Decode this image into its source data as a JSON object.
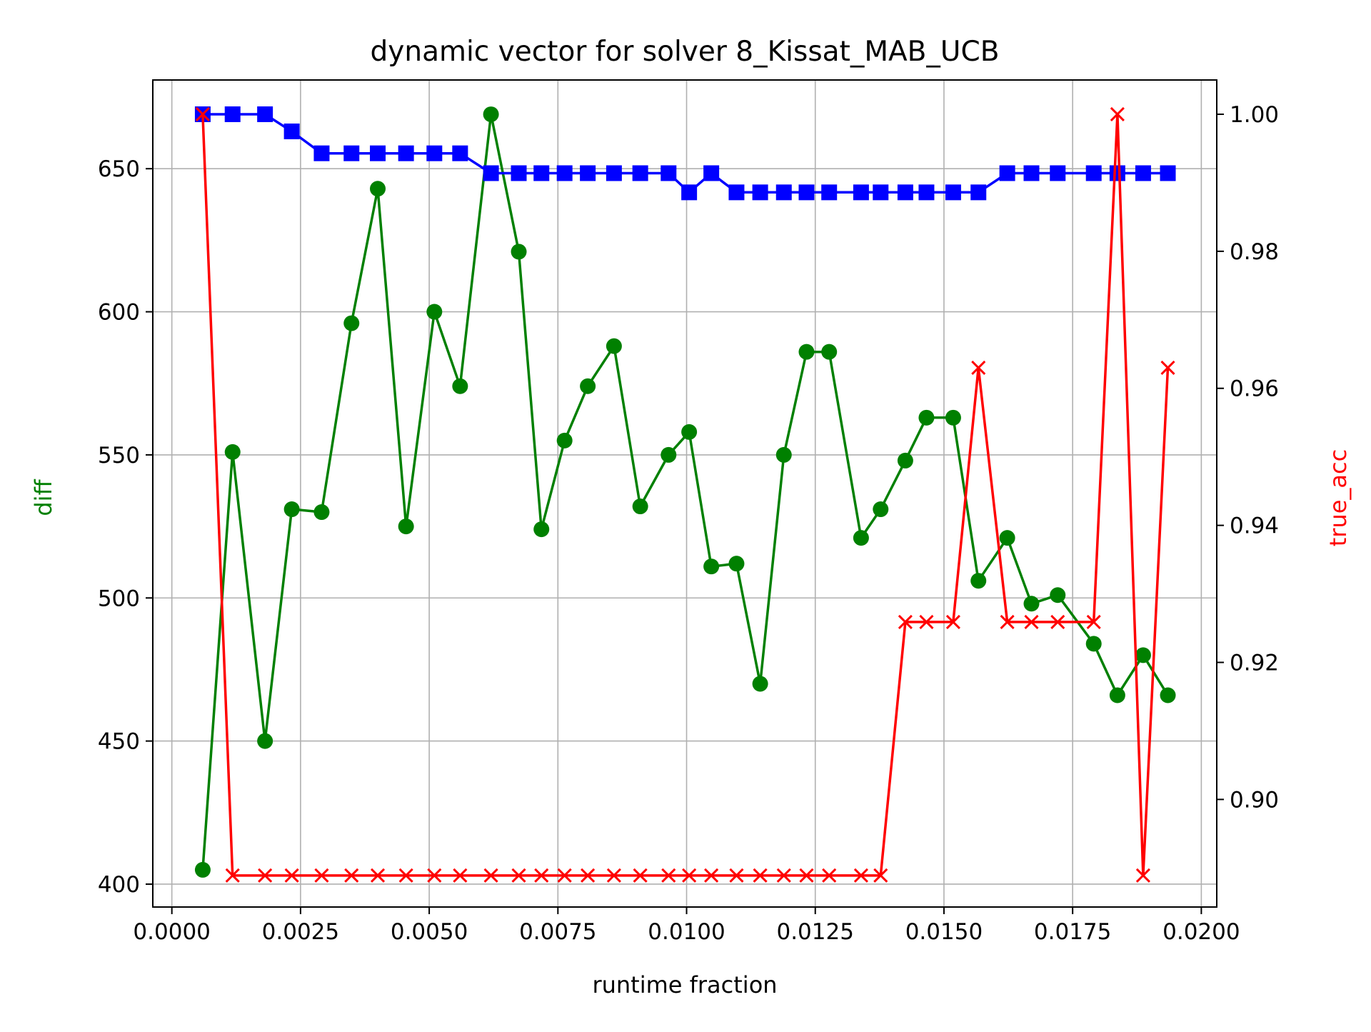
{
  "chart_data": {
    "type": "line",
    "title": "dynamic vector for solver 8_Kissat_MAB_UCB",
    "xlabel": "runtime fraction",
    "ylabel_left": "diff",
    "ylabel_right": "true_acc",
    "xlim": [
      -0.00037,
      0.0203
    ],
    "ylim_left": [
      392,
      681
    ],
    "ylim_right": [
      0.8843,
      1.005
    ],
    "xticks": [
      0.0,
      0.0025,
      0.005,
      0.0075,
      0.01,
      0.0125,
      0.015,
      0.0175,
      0.02
    ],
    "xtick_labels": [
      "0.0000",
      "0.0025",
      "0.0050",
      "0.0075",
      "0.0100",
      "0.0125",
      "0.0150",
      "0.0175",
      "0.0200"
    ],
    "yticks_left": [
      400,
      450,
      500,
      550,
      600,
      650
    ],
    "ytick_labels_left": [
      "400",
      "450",
      "500",
      "550",
      "600",
      "650"
    ],
    "yticks_right": [
      0.9,
      0.92,
      0.94,
      0.96,
      0.98,
      1.0
    ],
    "ytick_labels_right": [
      "0.90",
      "0.92",
      "0.94",
      "0.96",
      "0.98",
      "1.00"
    ],
    "grid": true,
    "series": [
      {
        "axis": "left",
        "color": "#008000",
        "marker": "circle",
        "points": [
          [
            0.0006,
            405
          ],
          [
            0.00118,
            551
          ],
          [
            0.00181,
            450
          ],
          [
            0.00233,
            531
          ],
          [
            0.00291,
            530
          ],
          [
            0.00349,
            596
          ],
          [
            0.004,
            643
          ],
          [
            0.00455,
            525
          ],
          [
            0.0051,
            600
          ],
          [
            0.0056,
            574
          ],
          [
            0.0062,
            669
          ],
          [
            0.00674,
            621
          ],
          [
            0.00718,
            524
          ],
          [
            0.00763,
            555
          ],
          [
            0.00808,
            574
          ],
          [
            0.00859,
            588
          ],
          [
            0.0091,
            532
          ],
          [
            0.00965,
            550
          ],
          [
            0.01005,
            558
          ],
          [
            0.01048,
            511
          ],
          [
            0.01097,
            512
          ],
          [
            0.01143,
            470
          ],
          [
            0.01189,
            550
          ],
          [
            0.01233,
            586
          ],
          [
            0.01277,
            586
          ],
          [
            0.01339,
            521
          ],
          [
            0.01377,
            531
          ],
          [
            0.01425,
            548
          ],
          [
            0.01466,
            563
          ],
          [
            0.01518,
            563
          ],
          [
            0.01567,
            506
          ],
          [
            0.01623,
            521
          ],
          [
            0.0167,
            498
          ],
          [
            0.01721,
            501
          ],
          [
            0.01791,
            484
          ],
          [
            0.01837,
            466
          ],
          [
            0.01887,
            480
          ],
          [
            0.01935,
            466
          ]
        ]
      },
      {
        "axis": "right",
        "color": "#0000ff",
        "marker": "square",
        "points": [
          [
            0.0006,
            1.0
          ],
          [
            0.00118,
            1.0
          ],
          [
            0.00181,
            1.0
          ],
          [
            0.00233,
            0.9975
          ],
          [
            0.00291,
            0.9943
          ],
          [
            0.00349,
            0.9943
          ],
          [
            0.004,
            0.9943
          ],
          [
            0.00455,
            0.9943
          ],
          [
            0.0051,
            0.9943
          ],
          [
            0.0056,
            0.9943
          ],
          [
            0.0062,
            0.9914
          ],
          [
            0.00674,
            0.9914
          ],
          [
            0.00718,
            0.9914
          ],
          [
            0.00763,
            0.9914
          ],
          [
            0.00808,
            0.9914
          ],
          [
            0.00859,
            0.9914
          ],
          [
            0.0091,
            0.9914
          ],
          [
            0.00965,
            0.9914
          ],
          [
            0.01005,
            0.9886
          ],
          [
            0.01048,
            0.9914
          ],
          [
            0.01097,
            0.9886
          ],
          [
            0.01143,
            0.9886
          ],
          [
            0.01189,
            0.9886
          ],
          [
            0.01233,
            0.9886
          ],
          [
            0.01277,
            0.9886
          ],
          [
            0.01339,
            0.9886
          ],
          [
            0.01377,
            0.9886
          ],
          [
            0.01425,
            0.9886
          ],
          [
            0.01466,
            0.9886
          ],
          [
            0.01518,
            0.9886
          ],
          [
            0.01567,
            0.9886
          ],
          [
            0.01623,
            0.9914
          ],
          [
            0.0167,
            0.9914
          ],
          [
            0.01721,
            0.9914
          ],
          [
            0.01791,
            0.9914
          ],
          [
            0.01837,
            0.9914
          ],
          [
            0.01887,
            0.9914
          ],
          [
            0.01935,
            0.9914
          ]
        ]
      },
      {
        "axis": "right",
        "color": "#ff0000",
        "marker": "x",
        "points": [
          [
            0.0006,
            1.0
          ],
          [
            0.00118,
            0.8889
          ],
          [
            0.00181,
            0.8889
          ],
          [
            0.00233,
            0.8889
          ],
          [
            0.00291,
            0.8889
          ],
          [
            0.00349,
            0.8889
          ],
          [
            0.004,
            0.8889
          ],
          [
            0.00455,
            0.8889
          ],
          [
            0.0051,
            0.8889
          ],
          [
            0.0056,
            0.8889
          ],
          [
            0.0062,
            0.8889
          ],
          [
            0.00674,
            0.8889
          ],
          [
            0.00718,
            0.8889
          ],
          [
            0.00763,
            0.8889
          ],
          [
            0.00808,
            0.8889
          ],
          [
            0.00859,
            0.8889
          ],
          [
            0.0091,
            0.8889
          ],
          [
            0.00965,
            0.8889
          ],
          [
            0.01005,
            0.8889
          ],
          [
            0.01048,
            0.8889
          ],
          [
            0.01097,
            0.8889
          ],
          [
            0.01143,
            0.8889
          ],
          [
            0.01189,
            0.8889
          ],
          [
            0.01233,
            0.8889
          ],
          [
            0.01277,
            0.8889
          ],
          [
            0.01339,
            0.8889
          ],
          [
            0.01377,
            0.8889
          ],
          [
            0.01425,
            0.9259
          ],
          [
            0.01466,
            0.9259
          ],
          [
            0.01518,
            0.9259
          ],
          [
            0.01567,
            0.963
          ],
          [
            0.01623,
            0.9259
          ],
          [
            0.0167,
            0.9259
          ],
          [
            0.01721,
            0.9259
          ],
          [
            0.01791,
            0.9259
          ],
          [
            0.01837,
            1.0
          ],
          [
            0.01887,
            0.8889
          ],
          [
            0.01935,
            0.963
          ]
        ]
      }
    ]
  }
}
